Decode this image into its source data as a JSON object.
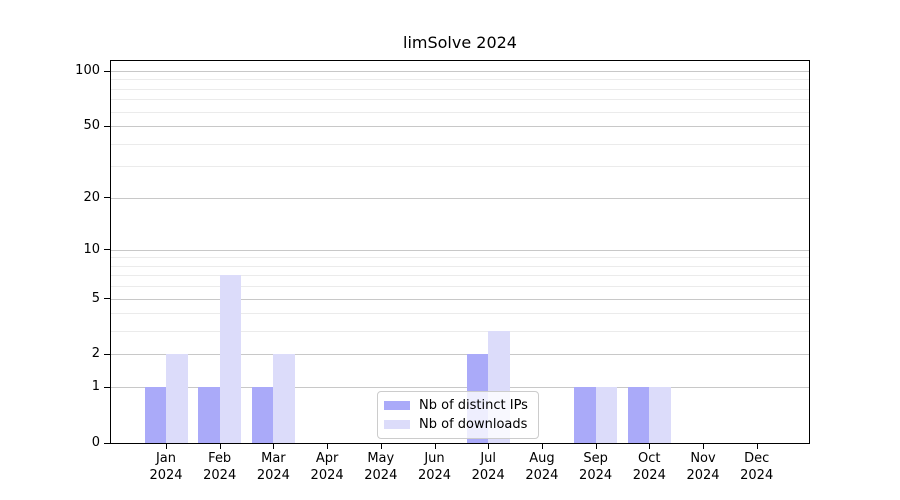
{
  "title": "limSolve 2024",
  "chart_data": {
    "type": "bar",
    "title": "limSolve 2024",
    "categories": [
      "Jan",
      "Feb",
      "Mar",
      "Apr",
      "May",
      "Jun",
      "Jul",
      "Aug",
      "Sep",
      "Oct",
      "Nov",
      "Dec"
    ],
    "year": "2024",
    "series": [
      {
        "name": "Nb of distinct IPs",
        "color": "#aaaaf9",
        "values": [
          1,
          1,
          1,
          0,
          0,
          0,
          2,
          0,
          1,
          1,
          0,
          0
        ]
      },
      {
        "name": "Nb of downloads",
        "color": "#dcdcfa",
        "values": [
          2,
          7,
          2,
          0,
          0,
          0,
          3,
          0,
          1,
          1,
          0,
          0
        ]
      }
    ],
    "y_scale": "log1p",
    "ylim": [
      0,
      115
    ],
    "y_ticks": [
      0,
      1,
      2,
      5,
      10,
      20,
      50,
      100
    ],
    "y_minor_gridlines": [
      3,
      4,
      6,
      7,
      8,
      9,
      30,
      40,
      60,
      70,
      80,
      90
    ],
    "grid": "horizontal",
    "legend_position": "lower center",
    "colors": {
      "grid_major": "#c8c8c8",
      "grid_minor": "#ebebeb",
      "axis": "#000000",
      "text": "#000000",
      "legend_border": "#cccccc",
      "legend_background": "rgba(255,255,255,0.8)",
      "background": "#ffffff"
    }
  }
}
